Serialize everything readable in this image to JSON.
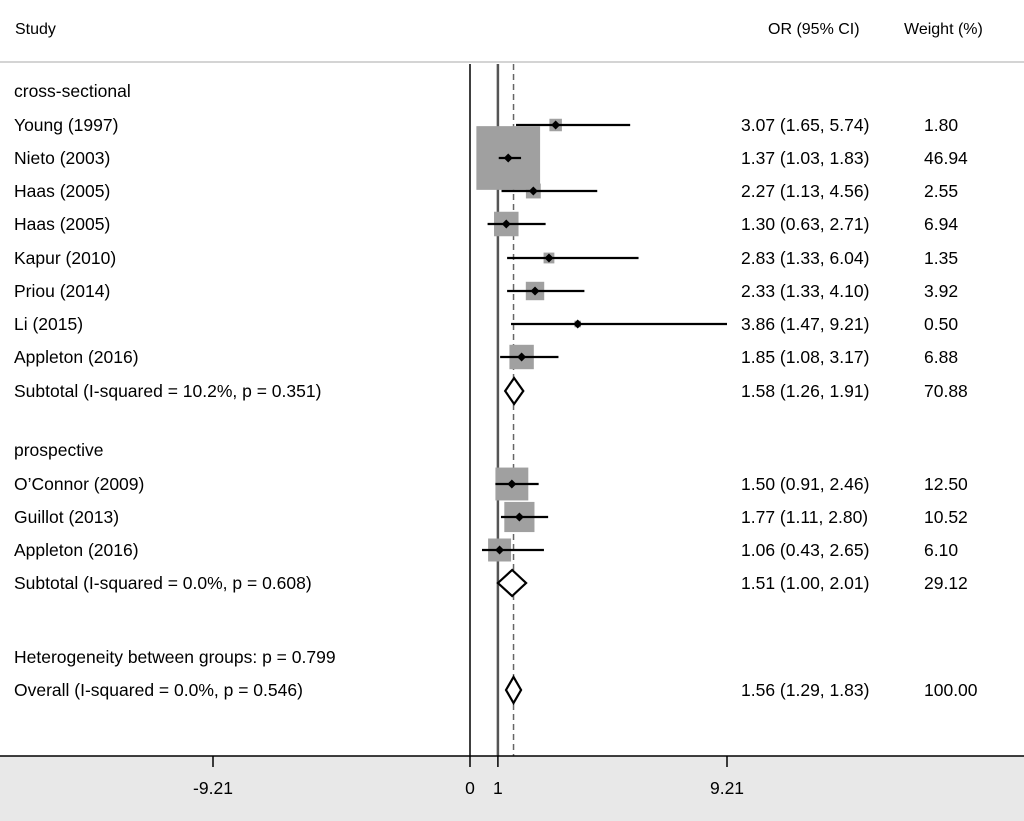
{
  "chart_data": {
    "type": "forest",
    "header": {
      "study": "Study",
      "estimate": "OR (95% CI)",
      "weight": "Weight (%)"
    },
    "x_ticks": [
      {
        "value": -9.21,
        "label": "-9.21"
      },
      {
        "value": 0,
        "label": "0"
      },
      {
        "value": 1,
        "label": "1"
      },
      {
        "value": 9.21,
        "label": "9.21"
      }
    ],
    "xlim": [
      -18.0,
      21.4
    ],
    "null_line": 0,
    "reference_line": 1,
    "overall_line": 1.56,
    "groups": [
      {
        "label": "cross-sectional",
        "studies": [
          {
            "name": "Young (1997)",
            "or": 3.07,
            "lower": 1.65,
            "upper": 5.74,
            "ci_text": "3.07 (1.65, 5.74)",
            "weight": 1.8,
            "weight_text": "1.80"
          },
          {
            "name": "Nieto (2003)",
            "or": 1.37,
            "lower": 1.03,
            "upper": 1.83,
            "ci_text": "1.37 (1.03, 1.83)",
            "weight": 46.94,
            "weight_text": "46.94"
          },
          {
            "name": "Haas (2005)",
            "or": 2.27,
            "lower": 1.13,
            "upper": 4.56,
            "ci_text": "2.27 (1.13, 4.56)",
            "weight": 2.55,
            "weight_text": "2.55"
          },
          {
            "name": "Haas (2005)",
            "or": 1.3,
            "lower": 0.63,
            "upper": 2.71,
            "ci_text": "1.30 (0.63, 2.71)",
            "weight": 6.94,
            "weight_text": "6.94"
          },
          {
            "name": "Kapur (2010)",
            "or": 2.83,
            "lower": 1.33,
            "upper": 6.04,
            "ci_text": "2.83 (1.33, 6.04)",
            "weight": 1.35,
            "weight_text": "1.35"
          },
          {
            "name": "Priou (2014)",
            "or": 2.33,
            "lower": 1.33,
            "upper": 4.1,
            "ci_text": "2.33 (1.33, 4.10)",
            "weight": 3.92,
            "weight_text": "3.92"
          },
          {
            "name": "Li (2015)",
            "or": 3.86,
            "lower": 1.47,
            "upper": 9.21,
            "ci_text": "3.86 (1.47, 9.21)",
            "weight": 0.5,
            "weight_text": "0.50"
          },
          {
            "name": "Appleton (2016)",
            "or": 1.85,
            "lower": 1.08,
            "upper": 3.17,
            "ci_text": "1.85 (1.08, 3.17)",
            "weight": 6.88,
            "weight_text": "6.88"
          }
        ],
        "subtotal": {
          "label": "Subtotal  (I-squared = 10.2%, p = 0.351)",
          "or": 1.58,
          "lower": 1.26,
          "upper": 1.91,
          "ci_text": "1.58 (1.26, 1.91)",
          "weight_text": "70.88"
        }
      },
      {
        "label": "prospective",
        "studies": [
          {
            "name": "O’Connor (2009)",
            "or": 1.5,
            "lower": 0.91,
            "upper": 2.46,
            "ci_text": "1.50 (0.91, 2.46)",
            "weight": 12.5,
            "weight_text": "12.50"
          },
          {
            "name": "Guillot (2013)",
            "or": 1.77,
            "lower": 1.11,
            "upper": 2.8,
            "ci_text": "1.77 (1.11, 2.80)",
            "weight": 10.52,
            "weight_text": "10.52"
          },
          {
            "name": "Appleton (2016)",
            "or": 1.06,
            "lower": 0.43,
            "upper": 2.65,
            "ci_text": "1.06 (0.43, 2.65)",
            "weight": 6.1,
            "weight_text": "6.10"
          }
        ],
        "subtotal": {
          "label": "Subtotal  (I-squared = 0.0%, p = 0.608)",
          "or": 1.51,
          "lower": 1.0,
          "upper": 2.01,
          "ci_text": "1.51 (1.00, 2.01)",
          "weight_text": "29.12"
        }
      }
    ],
    "heterogeneity": "Heterogeneity between groups: p = 0.799",
    "overall": {
      "label": "Overall  (I-squared = 0.0%, p = 0.546)",
      "or": 1.56,
      "lower": 1.29,
      "upper": 1.83,
      "ci_text": "1.56 (1.29, 1.83)",
      "weight_text": "100.00"
    },
    "colors": {
      "box": "#a0a0a0",
      "line": "#000000",
      "axis_band": "#e8e8e8",
      "reference_line": "#555555",
      "rule": "#aaaaaa"
    }
  }
}
